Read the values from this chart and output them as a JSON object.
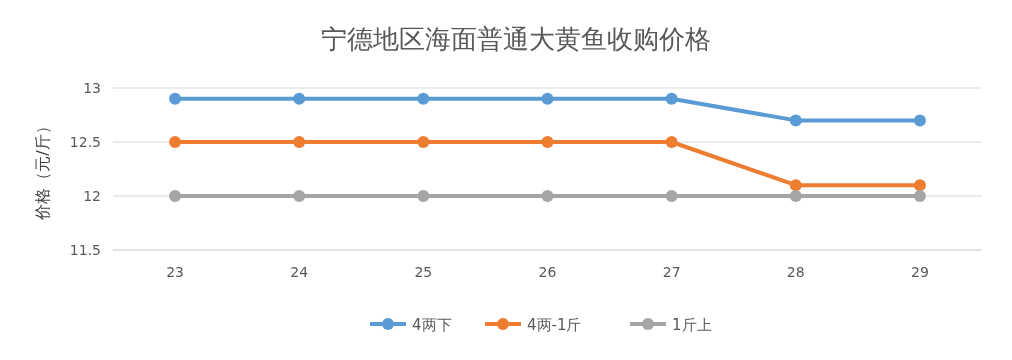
{
  "chart_data": {
    "type": "line",
    "title": "宁德地区海面普通大黄鱼收购价格",
    "ylabel": "价格（元/斤）",
    "categories": [
      "23",
      "24",
      "25",
      "26",
      "27",
      "28",
      "29"
    ],
    "series": [
      {
        "name": "4两下",
        "color": "#5b9bd5",
        "values": [
          12.9,
          12.9,
          12.9,
          12.9,
          12.9,
          12.7,
          12.7
        ]
      },
      {
        "name": "4两-1斤",
        "color": "#ed7d31",
        "values": [
          12.5,
          12.5,
          12.5,
          12.5,
          12.5,
          12.1,
          12.1
        ]
      },
      {
        "name": "1斤上",
        "color": "#a5a5a5",
        "values": [
          12,
          12,
          12,
          12,
          12,
          12,
          12
        ]
      }
    ],
    "ylim": [
      11.5,
      13
    ],
    "yticks": [
      11.5,
      12,
      12.5,
      13
    ],
    "grid": "y",
    "legend": "bottom",
    "marker": "circle"
  }
}
